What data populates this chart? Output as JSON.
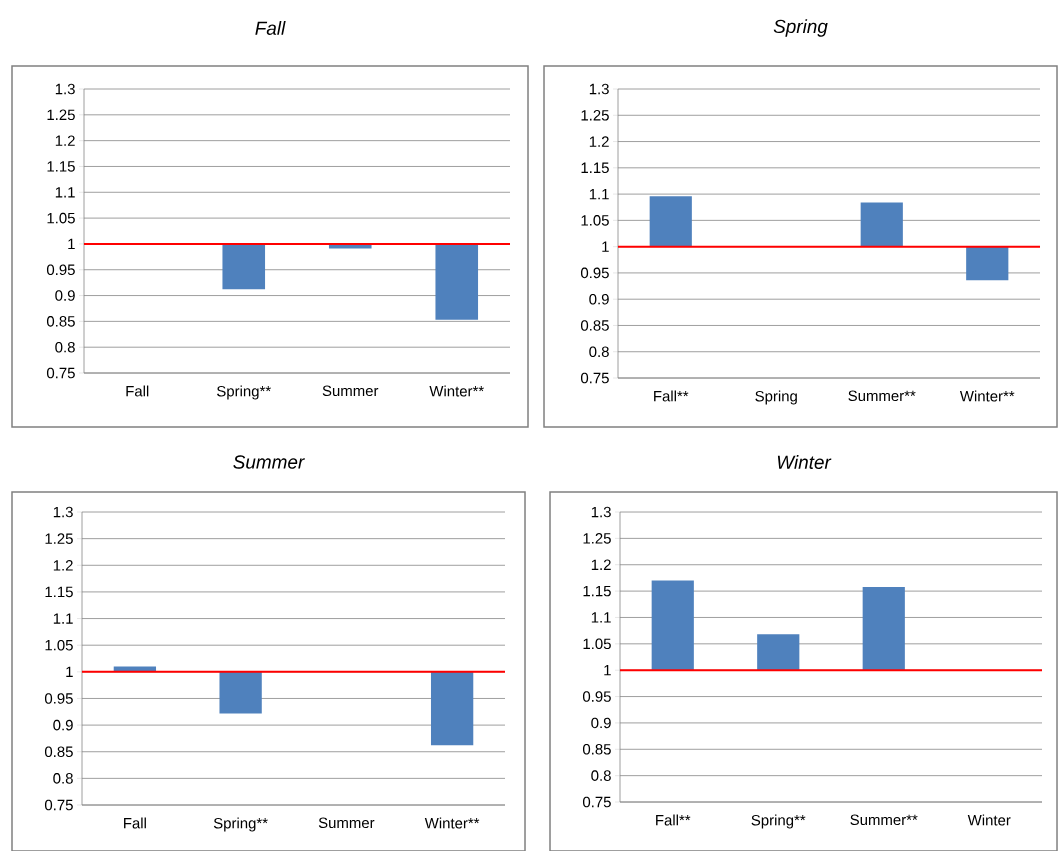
{
  "chart_data": [
    {
      "type": "bar",
      "title": "Fall",
      "categories": [
        "Fall",
        "Spring**",
        "Summer",
        "Winter**"
      ],
      "values": [
        null,
        -0.088,
        -0.009,
        -0.147
      ],
      "base": [
        null,
        1,
        1,
        1
      ],
      "color": "#4f81bd",
      "ylim": [
        0.75,
        1.3
      ],
      "yticks": [
        0.75,
        0.8,
        0.85,
        0.9,
        0.95,
        1,
        1.05,
        1.1,
        1.15,
        1.2,
        1.25,
        1.3
      ],
      "grid": "y",
      "ref_lines": [
        {
          "axis": "y",
          "value": 1,
          "color": "#ff0000"
        }
      ]
    },
    {
      "type": "bar",
      "title": "Spring",
      "categories": [
        "Fall**",
        "Spring",
        "Summer**",
        "Winter**"
      ],
      "values": [
        0.096,
        null,
        0.084,
        -0.064
      ],
      "base": [
        1,
        null,
        1,
        1
      ],
      "color": "#4f81bd",
      "ylim": [
        0.75,
        1.3
      ],
      "yticks": [
        0.75,
        0.8,
        0.85,
        0.9,
        0.95,
        1,
        1.05,
        1.1,
        1.15,
        1.2,
        1.25,
        1.3
      ],
      "grid": "y",
      "ref_lines": [
        {
          "axis": "y",
          "value": 1,
          "color": "#ff0000"
        }
      ]
    },
    {
      "type": "bar",
      "title": "Summer",
      "categories": [
        "Fall",
        "Spring**",
        "Summer",
        "Winter**"
      ],
      "values": [
        0.01,
        -0.078,
        null,
        -0.138
      ],
      "base": [
        1,
        1,
        null,
        1
      ],
      "color": "#4f81bd",
      "ylim": [
        0.75,
        1.3
      ],
      "yticks": [
        0.75,
        0.8,
        0.85,
        0.9,
        0.95,
        1,
        1.05,
        1.1,
        1.15,
        1.2,
        1.25,
        1.3
      ],
      "grid": "y",
      "ref_lines": [
        {
          "axis": "y",
          "value": 1,
          "color": "#ff0000"
        }
      ]
    },
    {
      "type": "bar",
      "title": "Winter",
      "categories": [
        "Fall**",
        "Spring**",
        "Summer**",
        "Winter"
      ],
      "values": [
        0.17,
        0.068,
        0.158,
        null
      ],
      "base": [
        1,
        1,
        1,
        null
      ],
      "color": "#4f81bd",
      "ylim": [
        0.75,
        1.3
      ],
      "yticks": [
        0.75,
        0.8,
        0.85,
        0.9,
        0.95,
        1,
        1.05,
        1.1,
        1.15,
        1.2,
        1.25,
        1.3
      ],
      "grid": "y",
      "ref_lines": [
        {
          "axis": "y",
          "value": 1,
          "color": "#ff0000"
        }
      ]
    }
  ]
}
